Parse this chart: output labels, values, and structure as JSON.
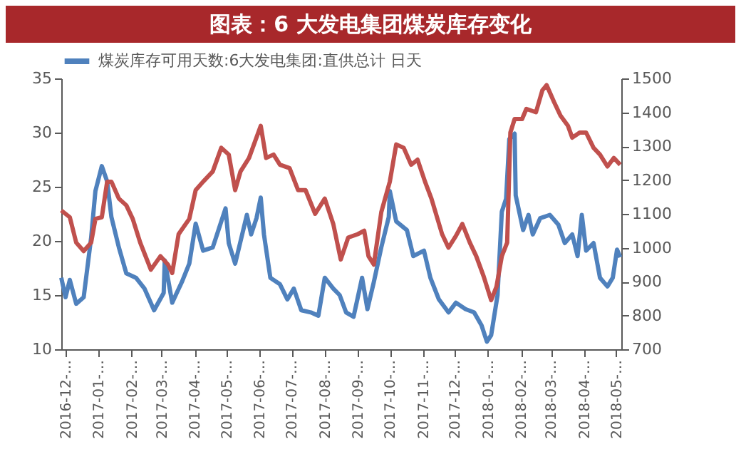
{
  "chart_data": {
    "type": "line",
    "title": "图表：6 大发电集团煤炭库存变化",
    "legend": "top",
    "xlim": [
      "2016-11-27",
      "2018-05-06"
    ],
    "xticks": [
      {
        "value": "2016-12-01",
        "label": "2016-12-…"
      },
      {
        "value": "2017-01-01",
        "label": "2017-01-…"
      },
      {
        "value": "2017-02-01",
        "label": "2017-02-…"
      },
      {
        "value": "2017-03-01",
        "label": "2017-03-…"
      },
      {
        "value": "2017-04-01",
        "label": "2017-04-…"
      },
      {
        "value": "2017-05-01",
        "label": "2017-05-…"
      },
      {
        "value": "2017-06-01",
        "label": "2017-06-…"
      },
      {
        "value": "2017-07-01",
        "label": "2017-07-…"
      },
      {
        "value": "2017-08-01",
        "label": "2017-08-…"
      },
      {
        "value": "2017-09-01",
        "label": "2017-09-…"
      },
      {
        "value": "2017-10-01",
        "label": "2017-10-…"
      },
      {
        "value": "2017-11-01",
        "label": "2017-11-…"
      },
      {
        "value": "2017-12-01",
        "label": "2017-12-…"
      },
      {
        "value": "2018-01-01",
        "label": "2018-01-…"
      },
      {
        "value": "2018-02-01",
        "label": "2018-02-…"
      },
      {
        "value": "2018-03-01",
        "label": "2018-03-…"
      },
      {
        "value": "2018-04-01",
        "label": "2018-04-…"
      },
      {
        "value": "2018-05-01",
        "label": "2018-05-…"
      }
    ],
    "ylim": [
      10,
      35
    ],
    "yticks": [
      10,
      15,
      20,
      25,
      30,
      35
    ],
    "y2lim": [
      700,
      1500
    ],
    "y2ticks": [
      700,
      800,
      900,
      1000,
      1100,
      1200,
      1300,
      1400,
      1500
    ],
    "series": [
      {
        "name": "煤炭库存可用天数:6大发电集团:直供总计 日天",
        "color": "#4f81bd",
        "x": [
          "2016-11-27",
          "2016-12-01",
          "2016-12-05",
          "2016-12-11",
          "2016-12-18",
          "2016-12-25",
          "2016-12-29",
          "2017-01-04",
          "2017-01-09",
          "2017-01-13",
          "2017-01-20",
          "2017-01-27",
          "2017-02-05",
          "2017-02-13",
          "2017-02-22",
          "2017-03-03",
          "2017-03-04",
          "2017-03-11",
          "2017-03-20",
          "2017-03-27",
          "2017-04-02",
          "2017-04-09",
          "2017-04-18",
          "2017-04-25",
          "2017-04-30",
          "2017-05-03",
          "2017-05-09",
          "2017-05-20",
          "2017-05-24",
          "2017-05-29",
          "2017-06-02",
          "2017-06-05",
          "2017-06-11",
          "2017-06-20",
          "2017-06-27",
          "2017-07-03",
          "2017-07-10",
          "2017-07-19",
          "2017-07-26",
          "2017-08-01",
          "2017-08-09",
          "2017-08-15",
          "2017-08-21",
          "2017-08-28",
          "2017-09-05",
          "2017-09-10",
          "2017-09-16",
          "2017-09-23",
          "2017-09-30",
          "2017-10-01",
          "2017-10-07",
          "2017-10-17",
          "2017-10-23",
          "2017-11-02",
          "2017-11-08",
          "2017-11-16",
          "2017-11-25",
          "2017-12-02",
          "2017-12-11",
          "2017-12-19",
          "2017-12-26",
          "2017-12-31",
          "2018-01-04",
          "2018-01-10",
          "2018-01-14",
          "2018-01-18",
          "2018-01-21",
          "2018-01-26",
          "2018-01-27",
          "2018-02-03",
          "2018-02-08",
          "2018-02-12",
          "2018-02-19",
          "2018-02-28",
          "2018-03-08",
          "2018-03-14",
          "2018-03-21",
          "2018-03-26",
          "2018-03-30",
          "2018-04-03",
          "2018-04-10",
          "2018-04-16",
          "2018-04-23",
          "2018-04-28",
          "2018-05-02",
          "2018-05-05"
        ],
        "values": [
          16.6,
          14.8,
          16.4,
          14.2,
          14.8,
          20.3,
          24.6,
          26.9,
          25.5,
          22.2,
          19.4,
          17.0,
          16.6,
          15.6,
          13.6,
          15.2,
          18.2,
          14.3,
          16.2,
          17.9,
          21.6,
          19.1,
          19.4,
          21.5,
          23.0,
          19.8,
          17.9,
          22.4,
          20.6,
          22.1,
          24.0,
          20.6,
          16.6,
          16.0,
          14.6,
          15.6,
          13.6,
          13.4,
          13.1,
          16.6,
          15.6,
          15.0,
          13.4,
          13.0,
          16.6,
          13.7,
          16.2,
          19.4,
          22.2,
          24.6,
          21.8,
          21.0,
          18.6,
          19.1,
          16.6,
          14.6,
          13.4,
          14.3,
          13.7,
          13.4,
          12.2,
          10.7,
          11.3,
          15.0,
          22.7,
          23.9,
          29.4,
          29.9,
          24.2,
          21.0,
          22.4,
          20.6,
          22.1,
          22.4,
          21.5,
          19.8,
          20.6,
          18.6,
          22.4,
          19.1,
          19.8,
          16.6,
          15.8,
          16.6,
          19.2,
          18.5
        ]
      },
      {
        "color": "#c0504d",
        "axis": "y2",
        "x": [
          "2016-11-27",
          "2016-12-05",
          "2016-12-11",
          "2016-12-18",
          "2016-12-25",
          "2016-12-29",
          "2017-01-04",
          "2017-01-09",
          "2017-01-13",
          "2017-01-20",
          "2017-01-27",
          "2017-02-02",
          "2017-02-09",
          "2017-02-19",
          "2017-02-28",
          "2017-03-07",
          "2017-03-11",
          "2017-03-17",
          "2017-03-27",
          "2017-04-02",
          "2017-04-09",
          "2017-04-18",
          "2017-04-26",
          "2017-05-03",
          "2017-05-09",
          "2017-05-14",
          "2017-05-22",
          "2017-06-02",
          "2017-06-07",
          "2017-06-14",
          "2017-06-20",
          "2017-06-29",
          "2017-07-07",
          "2017-07-14",
          "2017-07-23",
          "2017-08-01",
          "2017-08-09",
          "2017-08-16",
          "2017-08-23",
          "2017-09-01",
          "2017-09-07",
          "2017-09-11",
          "2017-09-16",
          "2017-09-23",
          "2017-10-01",
          "2017-10-07",
          "2017-10-14",
          "2017-10-21",
          "2017-10-27",
          "2017-11-03",
          "2017-11-09",
          "2017-11-19",
          "2017-11-25",
          "2017-12-02",
          "2017-12-08",
          "2017-12-15",
          "2017-12-21",
          "2017-12-28",
          "2018-01-04",
          "2018-01-09",
          "2018-01-14",
          "2018-01-19",
          "2018-01-22",
          "2018-01-26",
          "2018-02-02",
          "2018-02-06",
          "2018-02-15",
          "2018-02-21",
          "2018-02-25",
          "2018-03-04",
          "2018-03-10",
          "2018-03-17",
          "2018-03-21",
          "2018-03-28",
          "2018-04-03",
          "2018-04-10",
          "2018-04-16",
          "2018-04-23",
          "2018-04-29",
          "2018-05-05"
        ],
        "values": [
          1110,
          1090,
          1015,
          990,
          1015,
          1085,
          1090,
          1195,
          1195,
          1145,
          1125,
          1085,
          1015,
          935,
          975,
          950,
          925,
          1040,
          1085,
          1170,
          1195,
          1225,
          1295,
          1275,
          1170,
          1225,
          1265,
          1360,
          1265,
          1275,
          1245,
          1235,
          1170,
          1170,
          1100,
          1145,
          1070,
          965,
          1030,
          1040,
          1050,
          975,
          950,
          1105,
          1195,
          1305,
          1295,
          1245,
          1260,
          1195,
          1145,
          1040,
          1000,
          1035,
          1070,
          1015,
          975,
          915,
          845,
          885,
          975,
          1015,
          1340,
          1380,
          1380,
          1410,
          1400,
          1465,
          1480,
          1430,
          1390,
          1360,
          1325,
          1340,
          1340,
          1295,
          1275,
          1240,
          1265,
          1245
        ]
      }
    ]
  }
}
